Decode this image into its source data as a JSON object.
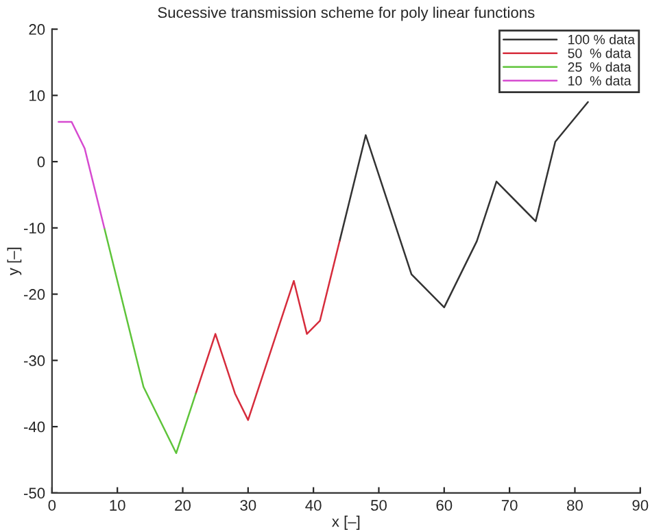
{
  "chart_data": {
    "type": "line",
    "title": "Sucessive transmission scheme for poly linear functions",
    "xlabel": "x [–]",
    "ylabel": "y [–]",
    "xlim": [
      0,
      90
    ],
    "ylim": [
      -50,
      20
    ],
    "xticks": [
      0,
      10,
      20,
      30,
      40,
      50,
      60,
      70,
      80,
      90
    ],
    "yticks": [
      -50,
      -40,
      -30,
      -20,
      -10,
      0,
      10,
      20
    ],
    "grid": false,
    "legend": "top right",
    "series": [
      {
        "name": "100 % data",
        "color": "#333333",
        "x": [
          44,
          48,
          55,
          60,
          65,
          68,
          74,
          77,
          82
        ],
        "values": [
          -12,
          4,
          -17,
          -22,
          -12,
          -3,
          -9,
          3,
          9
        ]
      },
      {
        "name": "50  % data",
        "color": "#d62c3c",
        "x": [
          22,
          25,
          28,
          30,
          37,
          39,
          41,
          44
        ],
        "values": [
          -35,
          -26,
          -35,
          -39,
          -18,
          -26,
          -24,
          -12
        ]
      },
      {
        "name": "25  % data",
        "color": "#5ec43a",
        "x": [
          8,
          14,
          19,
          22
        ],
        "values": [
          -10,
          -34,
          -44,
          -35
        ]
      },
      {
        "name": "10  % data",
        "color": "#d64ad0",
        "x": [
          1,
          3,
          5,
          8
        ],
        "values": [
          6,
          6,
          2,
          -10
        ]
      }
    ]
  }
}
